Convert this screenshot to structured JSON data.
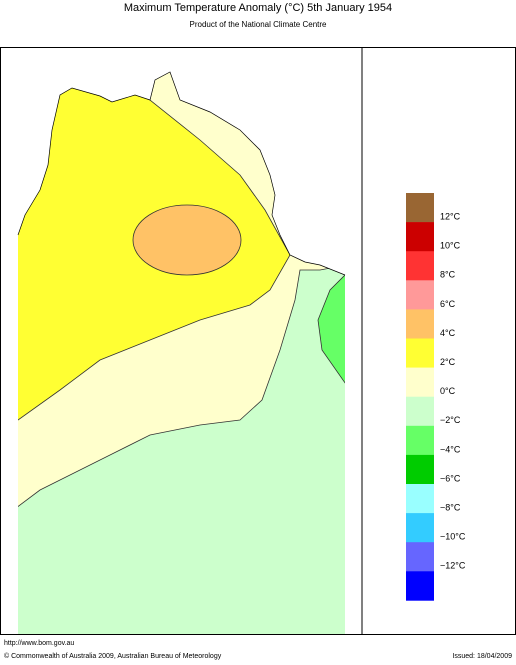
{
  "header": {
    "title": "Maximum Temperature Anomaly (°C)  5th January 1954",
    "subtitle": "Product of the National Climate Centre"
  },
  "legend": {
    "colors": [
      "#996633",
      "#cc0000",
      "#ff3333",
      "#ff9999",
      "#ffc266",
      "#ffff33",
      "#ffffcc",
      "#ccffcc",
      "#66ff66",
      "#00cc00",
      "#99ffff",
      "#33ccff",
      "#6666ff",
      "#0000ff"
    ],
    "labels": [
      "12°C",
      "10°C",
      "8°C",
      "6°C",
      "4°C",
      "2°C",
      "0°C",
      "−2°C",
      "−4°C",
      "−6°C",
      "−8°C",
      "−10°C",
      "−12°C"
    ]
  },
  "footer": {
    "url": "http://www.bom.gov.au",
    "copyright": "© Commonwealth of Australia 2009, Australian Bureau of Meteorology",
    "issued": "Issued: 18/04/2009"
  }
}
